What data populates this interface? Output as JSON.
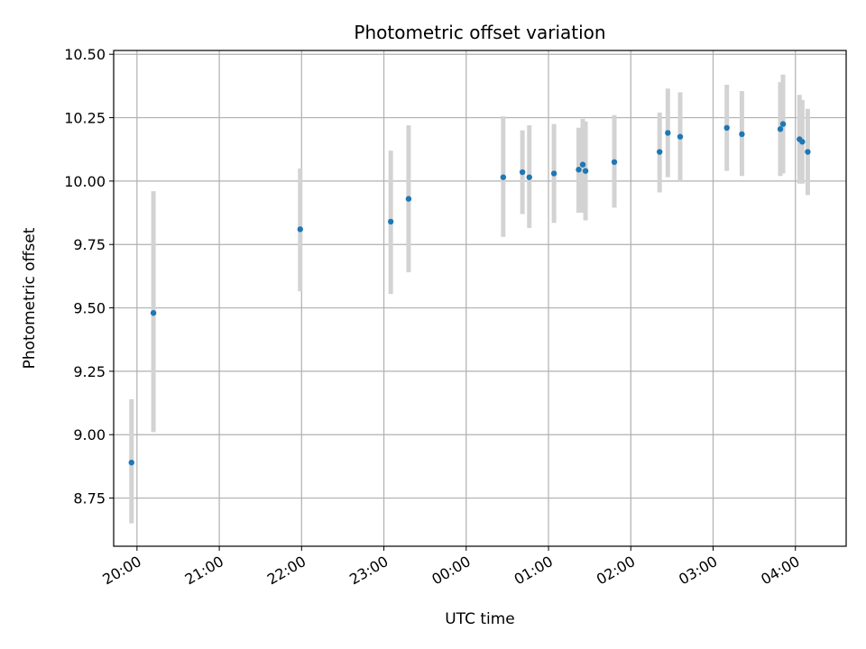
{
  "chart_data": {
    "type": "scatter",
    "title": "Photometric offset variation",
    "xlabel": "UTC time",
    "ylabel": "Photometric offset",
    "grid": true,
    "ylim": [
      8.56,
      10.515
    ],
    "xlim": [
      "19:43",
      "04:37"
    ],
    "yticks": [
      8.75,
      9.0,
      9.25,
      9.5,
      9.75,
      10.0,
      10.25,
      10.5
    ],
    "yticklabels": [
      "8.75",
      "9.00",
      "9.25",
      "9.50",
      "9.75",
      "10.00",
      "10.25",
      "10.50"
    ],
    "xticks": [
      "20:00",
      "21:00",
      "22:00",
      "23:00",
      "00:00",
      "01:00",
      "02:00",
      "03:00",
      "04:00"
    ],
    "marker_color": "#1f77b4",
    "errorbar_color": "#d3d3d3",
    "points": [
      {
        "t": "19:56",
        "y": 8.89,
        "lo": 8.65,
        "hi": 9.14
      },
      {
        "t": "20:12",
        "y": 9.48,
        "lo": 9.01,
        "hi": 9.96
      },
      {
        "t": "21:59",
        "y": 9.81,
        "lo": 9.565,
        "hi": 10.05
      },
      {
        "t": "23:05",
        "y": 9.84,
        "lo": 9.555,
        "hi": 10.12
      },
      {
        "t": "23:18",
        "y": 9.93,
        "lo": 9.64,
        "hi": 10.22
      },
      {
        "t": "00:27",
        "y": 10.015,
        "lo": 9.78,
        "hi": 10.255
      },
      {
        "t": "00:41",
        "y": 10.035,
        "lo": 9.87,
        "hi": 10.2
      },
      {
        "t": "00:46",
        "y": 10.015,
        "lo": 9.815,
        "hi": 10.22
      },
      {
        "t": "01:04",
        "y": 10.03,
        "lo": 9.835,
        "hi": 10.225
      },
      {
        "t": "01:22",
        "y": 10.045,
        "lo": 9.875,
        "hi": 10.21
      },
      {
        "t": "01:25",
        "y": 10.065,
        "lo": 9.875,
        "hi": 10.245
      },
      {
        "t": "01:27",
        "y": 10.04,
        "lo": 9.845,
        "hi": 10.235
      },
      {
        "t": "01:48",
        "y": 10.075,
        "lo": 9.895,
        "hi": 10.26
      },
      {
        "t": "02:21",
        "y": 10.115,
        "lo": 9.955,
        "hi": 10.27
      },
      {
        "t": "02:27",
        "y": 10.19,
        "lo": 10.015,
        "hi": 10.365
      },
      {
        "t": "02:36",
        "y": 10.175,
        "lo": 10.0,
        "hi": 10.35
      },
      {
        "t": "03:10",
        "y": 10.21,
        "lo": 10.04,
        "hi": 10.38
      },
      {
        "t": "03:21",
        "y": 10.185,
        "lo": 10.02,
        "hi": 10.355
      },
      {
        "t": "03:49",
        "y": 10.205,
        "lo": 10.02,
        "hi": 10.39
      },
      {
        "t": "03:51",
        "y": 10.225,
        "lo": 10.03,
        "hi": 10.42
      },
      {
        "t": "04:03",
        "y": 10.165,
        "lo": 9.99,
        "hi": 10.34
      },
      {
        "t": "04:05",
        "y": 10.155,
        "lo": 9.99,
        "hi": 10.32
      },
      {
        "t": "04:09",
        "y": 10.115,
        "lo": 9.945,
        "hi": 10.285
      }
    ]
  }
}
